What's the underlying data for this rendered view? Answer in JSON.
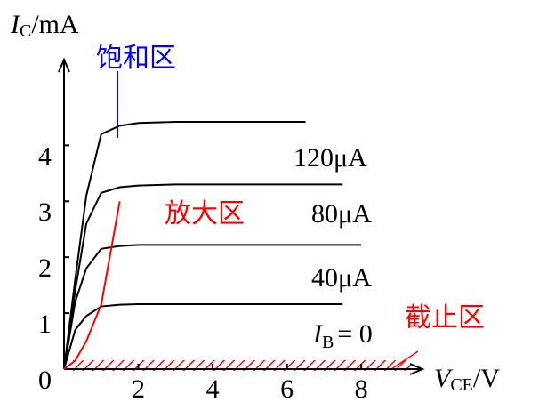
{
  "chart_data": {
    "type": "line",
    "ylabel": {
      "main": "I",
      "sub": "C",
      "unit": "/mA"
    },
    "xlabel": {
      "main": "V",
      "sub": "CE",
      "unit": "/V"
    },
    "x": [
      0,
      0.3,
      0.6,
      1,
      1.5,
      2,
      3,
      4,
      5,
      6,
      6.5,
      7,
      7.5,
      8
    ],
    "series": [
      {
        "color": "#000000",
        "values": [
          0,
          1.6,
          3.1,
          4.2,
          4.35,
          4.4,
          4.42,
          4.42,
          4.42,
          4.42,
          4.42,
          null,
          null,
          null
        ]
      },
      {
        "color": "#000000",
        "values": [
          0,
          1.4,
          2.6,
          3.15,
          3.25,
          3.28,
          3.3,
          3.3,
          3.3,
          3.3,
          3.3,
          3.3,
          3.3,
          null
        ]
      },
      {
        "color": "#000000",
        "values": [
          0,
          1.2,
          1.8,
          2.15,
          2.2,
          2.22,
          2.22,
          2.22,
          2.22,
          2.22,
          2.22,
          2.22,
          2.22,
          2.22
        ]
      },
      {
        "color": "#000000",
        "values": [
          0,
          0.7,
          0.95,
          1.12,
          1.15,
          1.16,
          1.16,
          1.16,
          1.16,
          1.16,
          1.16,
          1.16,
          1.16,
          null
        ]
      },
      {
        "color": "#ff0000",
        "values": [
          0,
          0.15,
          0.5,
          1.15,
          3.0,
          null,
          null,
          null,
          null,
          null,
          null,
          null,
          null,
          null
        ]
      }
    ],
    "xlim": [
      0,
      9.6
    ],
    "ylim": [
      0,
      5.5
    ],
    "xticks": [
      2,
      4,
      6,
      8
    ],
    "yticks": [
      0,
      1,
      2,
      3,
      4
    ],
    "annotations": [
      {
        "text": "饱和区",
        "color": "#0000ff"
      },
      {
        "text": "放大区",
        "color": "#ff0000"
      },
      {
        "text": "截止区",
        "color": "#ff0000"
      },
      {
        "text": "120μA",
        "color": "#000000"
      },
      {
        "text": "80μA",
        "color": "#000000"
      },
      {
        "text": "40μA",
        "color": "#000000"
      }
    ],
    "cutoff_label": {
      "main": "I",
      "sub": "B",
      "rest": "= 0"
    }
  }
}
